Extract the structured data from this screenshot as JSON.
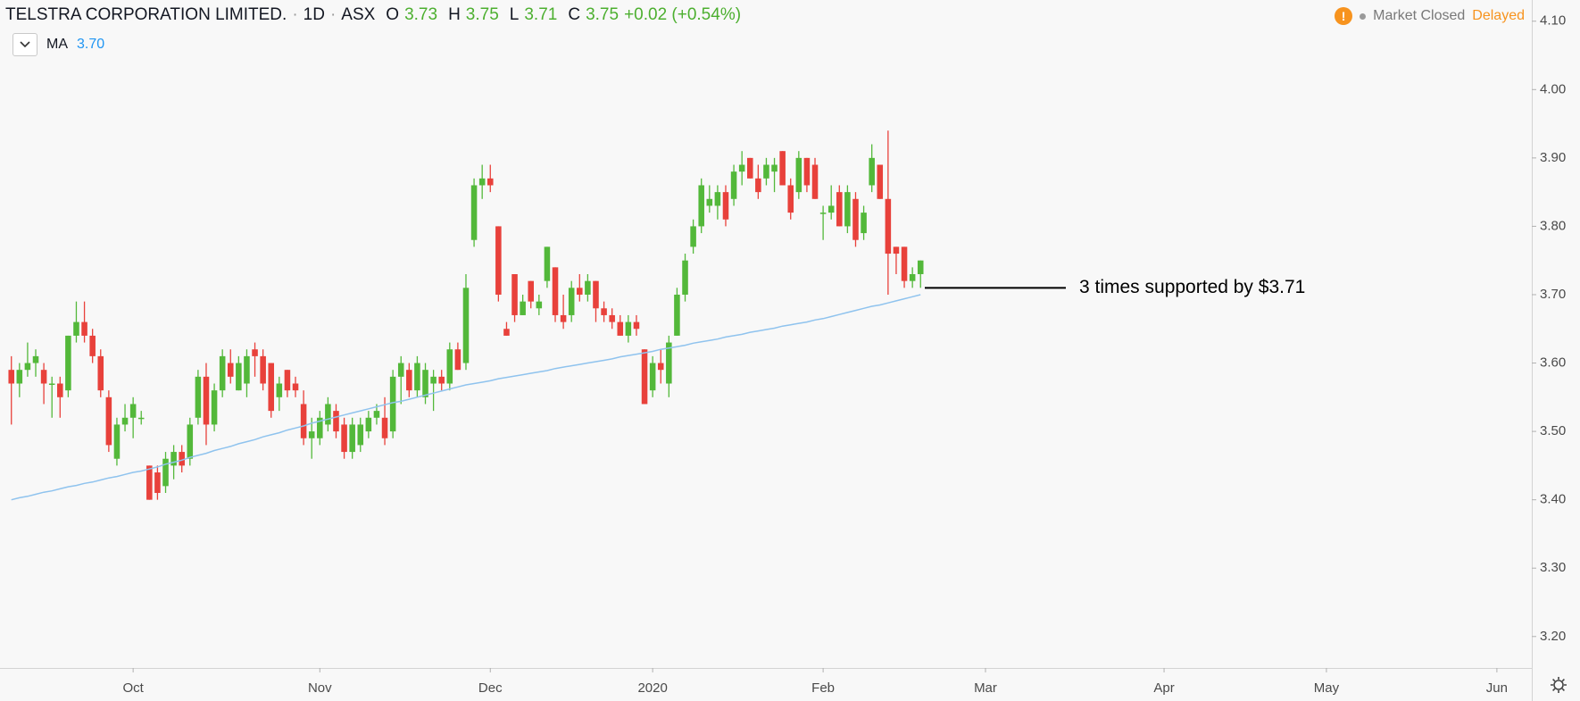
{
  "header": {
    "symbol": "TELSTRA CORPORATION LIMITED.",
    "interval": "1D",
    "exchange": "ASX",
    "open_label": "O",
    "open": "3.73",
    "high_label": "H",
    "high": "3.75",
    "low_label": "L",
    "low": "3.71",
    "close_label": "C",
    "close": "3.75",
    "change": "+0.02 (+0.54%)",
    "alert_icon": "!",
    "status": "Market Closed",
    "feed": "Delayed"
  },
  "chart_data": {
    "type": "candlestick",
    "up_color": "#53b83a",
    "down_color": "#e8413b",
    "open": [
      3.59,
      3.57,
      3.59,
      3.6,
      3.59,
      3.57,
      3.57,
      3.56,
      3.64,
      3.66,
      3.64,
      3.61,
      3.55,
      3.46,
      3.51,
      3.52,
      3.52,
      3.45,
      3.44,
      3.42,
      3.45,
      3.47,
      3.46,
      3.52,
      3.58,
      3.51,
      3.56,
      3.6,
      3.56,
      3.57,
      3.62,
      3.61,
      3.6,
      3.55,
      3.59,
      3.57,
      3.54,
      3.49,
      3.49,
      3.51,
      3.53,
      3.51,
      3.47,
      3.48,
      3.5,
      3.52,
      3.52,
      3.5,
      3.58,
      3.59,
      3.56,
      3.55,
      3.57,
      3.58,
      3.57,
      3.62,
      3.6,
      3.78,
      3.86,
      3.87,
      3.8,
      3.65,
      3.73,
      3.67,
      3.72,
      3.68,
      3.72,
      3.74,
      3.67,
      3.67,
      3.71,
      3.7,
      3.72,
      3.68,
      3.67,
      3.66,
      3.64,
      3.66,
      3.62,
      3.56,
      3.6,
      3.57,
      3.64,
      3.7,
      3.77,
      3.8,
      3.83,
      3.83,
      3.85,
      3.84,
      3.88,
      3.9,
      3.87,
      3.87,
      3.88,
      3.91,
      3.86,
      3.85,
      3.9,
      3.89,
      3.82,
      3.82,
      3.85,
      3.8,
      3.84,
      3.79,
      3.86,
      3.89,
      3.84,
      3.77,
      3.77,
      3.72,
      3.73
    ],
    "high": [
      3.61,
      3.6,
      3.63,
      3.62,
      3.6,
      3.58,
      3.58,
      3.64,
      3.69,
      3.69,
      3.65,
      3.62,
      3.56,
      3.52,
      3.54,
      3.55,
      3.53,
      3.45,
      3.45,
      3.47,
      3.48,
      3.48,
      3.52,
      3.59,
      3.6,
      3.57,
      3.62,
      3.62,
      3.61,
      3.62,
      3.63,
      3.62,
      3.6,
      3.58,
      3.59,
      3.58,
      3.56,
      3.52,
      3.53,
      3.55,
      3.54,
      3.52,
      3.52,
      3.52,
      3.53,
      3.54,
      3.55,
      3.59,
      3.61,
      3.6,
      3.61,
      3.6,
      3.59,
      3.59,
      3.63,
      3.63,
      3.73,
      3.87,
      3.89,
      3.89,
      3.8,
      3.66,
      3.73,
      3.7,
      3.72,
      3.7,
      3.77,
      3.74,
      3.7,
      3.72,
      3.73,
      3.73,
      3.72,
      3.69,
      3.68,
      3.67,
      3.67,
      3.67,
      3.62,
      3.61,
      3.62,
      3.64,
      3.71,
      3.76,
      3.81,
      3.87,
      3.86,
      3.86,
      3.86,
      3.89,
      3.91,
      3.9,
      3.89,
      3.9,
      3.9,
      3.91,
      3.87,
      3.91,
      3.9,
      3.9,
      3.83,
      3.86,
      3.86,
      3.86,
      3.85,
      3.83,
      3.92,
      3.89,
      3.94,
      3.77,
      3.77,
      3.74,
      3.75
    ],
    "low": [
      3.51,
      3.55,
      3.58,
      3.58,
      3.54,
      3.52,
      3.52,
      3.55,
      3.63,
      3.63,
      3.6,
      3.55,
      3.47,
      3.45,
      3.5,
      3.49,
      3.51,
      3.4,
      3.4,
      3.41,
      3.43,
      3.44,
      3.45,
      3.51,
      3.48,
      3.5,
      3.55,
      3.57,
      3.56,
      3.55,
      3.58,
      3.56,
      3.52,
      3.53,
      3.55,
      3.55,
      3.48,
      3.46,
      3.48,
      3.5,
      3.49,
      3.46,
      3.46,
      3.47,
      3.49,
      3.51,
      3.48,
      3.49,
      3.54,
      3.55,
      3.55,
      3.54,
      3.53,
      3.56,
      3.56,
      3.59,
      3.59,
      3.77,
      3.84,
      3.85,
      3.69,
      3.64,
      3.66,
      3.67,
      3.68,
      3.67,
      3.71,
      3.66,
      3.65,
      3.66,
      3.69,
      3.69,
      3.66,
      3.66,
      3.65,
      3.64,
      3.63,
      3.64,
      3.54,
      3.55,
      3.57,
      3.55,
      3.64,
      3.69,
      3.76,
      3.79,
      3.82,
      3.81,
      3.8,
      3.83,
      3.86,
      3.87,
      3.84,
      3.86,
      3.85,
      3.86,
      3.81,
      3.84,
      3.85,
      3.84,
      3.78,
      3.81,
      3.8,
      3.79,
      3.77,
      3.78,
      3.85,
      3.84,
      3.7,
      3.73,
      3.71,
      3.71,
      3.71
    ],
    "close": [
      3.57,
      3.59,
      3.6,
      3.61,
      3.57,
      3.57,
      3.55,
      3.64,
      3.66,
      3.64,
      3.61,
      3.56,
      3.48,
      3.51,
      3.52,
      3.54,
      3.52,
      3.4,
      3.41,
      3.46,
      3.47,
      3.45,
      3.51,
      3.58,
      3.51,
      3.56,
      3.61,
      3.58,
      3.6,
      3.61,
      3.61,
      3.57,
      3.53,
      3.57,
      3.56,
      3.56,
      3.49,
      3.5,
      3.52,
      3.54,
      3.5,
      3.47,
      3.51,
      3.51,
      3.52,
      3.53,
      3.49,
      3.58,
      3.6,
      3.56,
      3.6,
      3.59,
      3.58,
      3.57,
      3.62,
      3.59,
      3.71,
      3.86,
      3.87,
      3.86,
      3.7,
      3.64,
      3.67,
      3.69,
      3.69,
      3.69,
      3.77,
      3.67,
      3.66,
      3.71,
      3.7,
      3.72,
      3.68,
      3.67,
      3.66,
      3.64,
      3.66,
      3.65,
      3.54,
      3.6,
      3.59,
      3.63,
      3.7,
      3.75,
      3.8,
      3.86,
      3.84,
      3.85,
      3.81,
      3.88,
      3.89,
      3.87,
      3.85,
      3.89,
      3.89,
      3.86,
      3.82,
      3.9,
      3.86,
      3.84,
      3.82,
      3.83,
      3.8,
      3.85,
      3.78,
      3.82,
      3.9,
      3.84,
      3.76,
      3.76,
      3.72,
      3.73,
      3.75
    ],
    "ma": {
      "name": "MA",
      "value_label": "3.70",
      "color": "#8fc3ee",
      "values": [
        3.4,
        3.403,
        3.405,
        3.408,
        3.411,
        3.413,
        3.416,
        3.419,
        3.421,
        3.424,
        3.426,
        3.429,
        3.432,
        3.434,
        3.437,
        3.44,
        3.442,
        3.445,
        3.448,
        3.452,
        3.455,
        3.458,
        3.462,
        3.465,
        3.468,
        3.472,
        3.475,
        3.478,
        3.482,
        3.485,
        3.488,
        3.492,
        3.495,
        3.498,
        3.502,
        3.505,
        3.508,
        3.512,
        3.515,
        3.518,
        3.521,
        3.524,
        3.527,
        3.53,
        3.533,
        3.536,
        3.539,
        3.542,
        3.544,
        3.547,
        3.55,
        3.553,
        3.556,
        3.559,
        3.562,
        3.565,
        3.568,
        3.57,
        3.572,
        3.574,
        3.577,
        3.579,
        3.581,
        3.583,
        3.585,
        3.587,
        3.589,
        3.592,
        3.594,
        3.596,
        3.598,
        3.6,
        3.602,
        3.604,
        3.606,
        3.609,
        3.611,
        3.613,
        3.615,
        3.617,
        3.62,
        3.622,
        3.624,
        3.626,
        3.629,
        3.631,
        3.633,
        3.635,
        3.638,
        3.64,
        3.642,
        3.645,
        3.647,
        3.649,
        3.651,
        3.654,
        3.656,
        3.658,
        3.66,
        3.663,
        3.665,
        3.668,
        3.671,
        3.674,
        3.677,
        3.68,
        3.683,
        3.685,
        3.688,
        3.691,
        3.694,
        3.697,
        3.7
      ]
    },
    "annotation": {
      "text": "3 times supported by $3.71",
      "value": 3.71
    },
    "xlim": [
      -1.4,
      187.3
    ],
    "xticks": [
      {
        "value": 15,
        "label": "Oct"
      },
      {
        "value": 38,
        "label": "Nov"
      },
      {
        "value": 59,
        "label": "Dec"
      },
      {
        "value": 79,
        "label": "2020"
      },
      {
        "value": 100,
        "label": "Feb"
      },
      {
        "value": 120,
        "label": "Mar"
      },
      {
        "value": 142,
        "label": "Apr"
      },
      {
        "value": 162,
        "label": "May"
      },
      {
        "value": 183,
        "label": "Jun"
      }
    ],
    "ylim": [
      3.154,
      4.131
    ],
    "yticks": [
      {
        "value": 3.2,
        "label": "3.20"
      },
      {
        "value": 3.3,
        "label": "3.30"
      },
      {
        "value": 3.4,
        "label": "3.40"
      },
      {
        "value": 3.5,
        "label": "3.50"
      },
      {
        "value": 3.6,
        "label": "3.60"
      },
      {
        "value": 3.7,
        "label": "3.70"
      },
      {
        "value": 3.8,
        "label": "3.80"
      },
      {
        "value": 3.9,
        "label": "3.90"
      },
      {
        "value": 4.0,
        "label": "4.00"
      },
      {
        "value": 4.1,
        "label": "4.10"
      }
    ],
    "grid": false
  }
}
